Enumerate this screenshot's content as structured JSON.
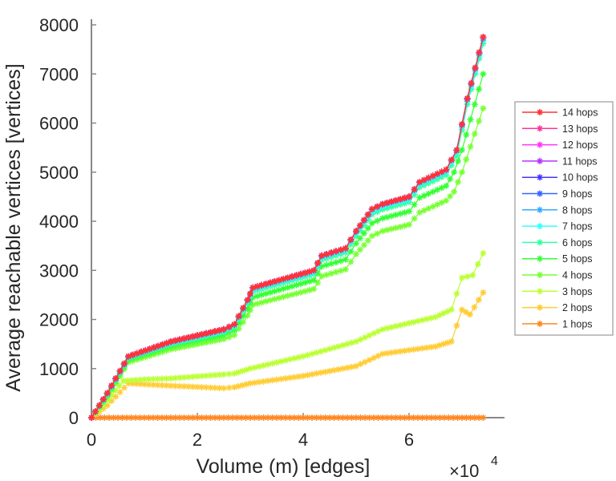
{
  "chart_data": {
    "type": "line",
    "title": "",
    "xlabel": "Volume (m) [edges]",
    "ylabel": "Average reachable vertices [vertices]",
    "x_multiplier_label": "×10",
    "x_multiplier_exponent": "4",
    "xlim": [
      0,
      7.8
    ],
    "ylim": [
      0,
      8000
    ],
    "xticks": [
      0,
      2,
      4,
      6
    ],
    "xtick_labels": [
      "0",
      "2",
      "4",
      "6"
    ],
    "yticks": [
      0,
      1000,
      2000,
      3000,
      4000,
      5000,
      6000,
      7000,
      8000
    ],
    "ytick_labels": [
      "0",
      "1000",
      "2000",
      "3000",
      "4000",
      "5000",
      "6000",
      "7000",
      "8000"
    ],
    "grid": false,
    "legend_position": "right",
    "series": [
      {
        "name": "14 hops",
        "color": "#ff3333",
        "x": [
          0,
          0.3,
          0.7,
          1.5,
          2.5,
          2.7,
          2.95,
          3.05,
          4.2,
          4.35,
          4.8,
          5.0,
          5.3,
          5.5,
          6.0,
          6.2,
          6.7,
          6.9,
          7.1,
          7.4
        ],
        "y": [
          0,
          500,
          1250,
          1550,
          1800,
          1900,
          2400,
          2650,
          3000,
          3300,
          3450,
          3800,
          4250,
          4350,
          4500,
          4800,
          5050,
          5450,
          6500,
          7750
        ]
      },
      {
        "name": "13 hops",
        "color": "#ff3399",
        "x": [
          0,
          0.3,
          0.7,
          1.5,
          2.5,
          2.7,
          2.95,
          3.05,
          4.2,
          4.35,
          4.8,
          5.0,
          5.3,
          5.5,
          6.0,
          6.2,
          6.7,
          6.9,
          7.1,
          7.4
        ],
        "y": [
          0,
          500,
          1250,
          1550,
          1800,
          1900,
          2400,
          2650,
          3000,
          3300,
          3450,
          3800,
          4250,
          4350,
          4500,
          4800,
          5050,
          5450,
          6500,
          7750
        ]
      },
      {
        "name": "12 hops",
        "color": "#ff33ff",
        "x": [
          0,
          0.3,
          0.7,
          1.5,
          2.5,
          2.7,
          2.95,
          3.05,
          4.2,
          4.35,
          4.8,
          5.0,
          5.3,
          5.5,
          6.0,
          6.2,
          6.7,
          6.9,
          7.1,
          7.4
        ],
        "y": [
          0,
          500,
          1250,
          1550,
          1800,
          1900,
          2400,
          2650,
          3000,
          3300,
          3450,
          3800,
          4250,
          4350,
          4500,
          4800,
          5050,
          5450,
          6500,
          7750
        ]
      },
      {
        "name": "11 hops",
        "color": "#b833ff",
        "x": [
          0,
          0.3,
          0.7,
          1.5,
          2.5,
          2.7,
          2.95,
          3.05,
          4.2,
          4.35,
          4.8,
          5.0,
          5.3,
          5.5,
          6.0,
          6.2,
          6.7,
          6.9,
          7.1,
          7.4
        ],
        "y": [
          0,
          500,
          1250,
          1550,
          1800,
          1900,
          2400,
          2650,
          3000,
          3300,
          3450,
          3800,
          4250,
          4350,
          4500,
          4800,
          5050,
          5450,
          6500,
          7750
        ]
      },
      {
        "name": "10 hops",
        "color": "#4433ff",
        "x": [
          0,
          0.3,
          0.7,
          1.5,
          2.5,
          2.7,
          2.95,
          3.05,
          4.2,
          4.35,
          4.8,
          5.0,
          5.3,
          5.5,
          6.0,
          6.2,
          6.7,
          6.9,
          7.1,
          7.4
        ],
        "y": [
          0,
          500,
          1250,
          1550,
          1800,
          1900,
          2400,
          2650,
          3000,
          3300,
          3450,
          3800,
          4250,
          4350,
          4500,
          4800,
          5050,
          5450,
          6500,
          7750
        ]
      },
      {
        "name": "9 hops",
        "color": "#3366ff",
        "x": [
          0,
          0.3,
          0.7,
          1.5,
          2.5,
          2.7,
          2.95,
          3.05,
          4.2,
          4.35,
          4.8,
          5.0,
          5.3,
          5.5,
          6.0,
          6.2,
          6.7,
          6.9,
          7.1,
          7.4
        ],
        "y": [
          0,
          500,
          1250,
          1550,
          1800,
          1900,
          2400,
          2650,
          3000,
          3300,
          3450,
          3800,
          4250,
          4350,
          4500,
          4800,
          5050,
          5450,
          6500,
          7750
        ]
      },
      {
        "name": "8 hops",
        "color": "#33aaff",
        "x": [
          0,
          0.3,
          0.7,
          1.5,
          2.5,
          2.7,
          2.95,
          3.05,
          4.2,
          4.35,
          4.8,
          5.0,
          5.3,
          5.5,
          6.0,
          6.2,
          6.7,
          6.9,
          7.1,
          7.4
        ],
        "y": [
          0,
          490,
          1240,
          1540,
          1790,
          1890,
          2390,
          2640,
          2990,
          3290,
          3440,
          3790,
          4240,
          4340,
          4490,
          4790,
          5040,
          5440,
          6480,
          7720
        ]
      },
      {
        "name": "7 hops",
        "color": "#33ffff",
        "x": [
          0,
          0.3,
          0.7,
          1.5,
          2.5,
          2.7,
          2.95,
          3.05,
          4.2,
          4.35,
          4.8,
          5.0,
          5.3,
          5.5,
          6.0,
          6.2,
          6.7,
          6.9,
          7.1,
          7.4
        ],
        "y": [
          0,
          480,
          1230,
          1520,
          1770,
          1870,
          2370,
          2610,
          2960,
          3260,
          3410,
          3760,
          4200,
          4300,
          4450,
          4750,
          5000,
          5400,
          6440,
          7680
        ]
      },
      {
        "name": "6 hops",
        "color": "#33ffa0",
        "x": [
          0,
          0.3,
          0.7,
          1.5,
          2.5,
          2.7,
          2.95,
          3.05,
          4.2,
          4.35,
          4.8,
          5.0,
          5.3,
          5.5,
          6.0,
          6.2,
          6.7,
          6.9,
          7.1,
          7.4
        ],
        "y": [
          0,
          470,
          1210,
          1500,
          1740,
          1840,
          2330,
          2570,
          2920,
          3210,
          3360,
          3700,
          4140,
          4240,
          4390,
          4690,
          4940,
          5340,
          6380,
          7620
        ]
      },
      {
        "name": "5 hops",
        "color": "#33ff33",
        "x": [
          0,
          0.3,
          0.7,
          1.5,
          2.5,
          2.7,
          2.95,
          3.05,
          4.2,
          4.35,
          4.8,
          5.0,
          5.3,
          5.5,
          6.0,
          6.2,
          6.7,
          6.85,
          7.0,
          7.4
        ],
        "y": [
          0,
          450,
          1180,
          1460,
          1680,
          1780,
          2220,
          2450,
          2800,
          3080,
          3220,
          3550,
          3960,
          4060,
          4200,
          4480,
          4720,
          5000,
          5450,
          7000
        ]
      },
      {
        "name": "4 hops",
        "color": "#77ff33",
        "x": [
          0,
          0.3,
          0.7,
          1.5,
          2.5,
          2.7,
          2.95,
          3.05,
          4.2,
          4.35,
          4.8,
          5.0,
          5.3,
          5.5,
          6.0,
          6.2,
          6.7,
          6.85,
          7.0,
          7.4
        ],
        "y": [
          0,
          420,
          1130,
          1390,
          1600,
          1680,
          2080,
          2300,
          2620,
          2880,
          3020,
          3330,
          3700,
          3800,
          3930,
          4180,
          4420,
          4600,
          5000,
          6300
        ]
      },
      {
        "name": "3 hops",
        "color": "#bbff33",
        "x": [
          0,
          0.3,
          0.6,
          1.0,
          1.5,
          2.5,
          2.7,
          3.0,
          4.0,
          5.0,
          5.5,
          6.5,
          6.8,
          7.0,
          7.2,
          7.4
        ],
        "y": [
          0,
          350,
          750,
          780,
          800,
          880,
          900,
          1000,
          1250,
          1550,
          1800,
          2050,
          2200,
          2850,
          2900,
          3350
        ]
      },
      {
        "name": "2 hops",
        "color": "#ffcc33",
        "x": [
          0,
          0.3,
          0.7,
          1.0,
          1.5,
          2.5,
          2.7,
          3.0,
          4.0,
          5.0,
          5.5,
          6.5,
          6.8,
          7.0,
          7.15,
          7.4
        ],
        "y": [
          0,
          250,
          700,
          680,
          650,
          600,
          620,
          700,
          850,
          1050,
          1300,
          1450,
          1550,
          2200,
          2100,
          2550
        ]
      },
      {
        "name": "1 hops",
        "color": "#ff8822",
        "x": [
          0,
          1,
          2,
          3,
          4,
          5,
          6,
          7,
          7.4
        ],
        "y": [
          0,
          0,
          0,
          0,
          0,
          0,
          0,
          0,
          0
        ]
      }
    ]
  }
}
